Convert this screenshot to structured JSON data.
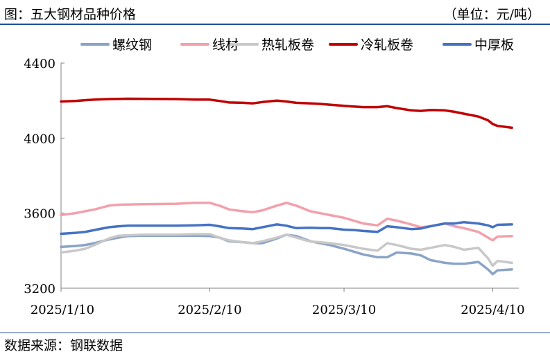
{
  "header": {
    "title": "图：五大钢材品种价格",
    "unit": "（单位：元/吨）"
  },
  "footer": {
    "source": "数据来源：钢联数据"
  },
  "chart_data": {
    "type": "line",
    "x_labels": [
      "2025/1/10",
      "2025/2/10",
      "2025/3/10",
      "2025/4/10"
    ],
    "x_range": [
      "2025/1/10",
      "2025/4/15"
    ],
    "ylim": [
      3200,
      4400
    ],
    "yticks": [
      3200,
      3600,
      4000,
      4400
    ],
    "legend_position": "top",
    "grid": false,
    "series": [
      {
        "name": "螺纹钢",
        "color": "#8aa3c8",
        "points": [
          [
            "2025-01-10",
            3420
          ],
          [
            "2025-01-13",
            3425
          ],
          [
            "2025-01-15",
            3430
          ],
          [
            "2025-01-17",
            3440
          ],
          [
            "2025-01-20",
            3460
          ],
          [
            "2025-01-22",
            3470
          ],
          [
            "2025-01-24",
            3478
          ],
          [
            "2025-01-27",
            3480
          ],
          [
            "2025-02-03",
            3480
          ],
          [
            "2025-02-07",
            3480
          ],
          [
            "2025-02-10",
            3478
          ],
          [
            "2025-02-12",
            3470
          ],
          [
            "2025-02-14",
            3450
          ],
          [
            "2025-02-17",
            3445
          ],
          [
            "2025-02-19",
            3440
          ],
          [
            "2025-02-21",
            3440
          ],
          [
            "2025-02-24",
            3465
          ],
          [
            "2025-02-26",
            3485
          ],
          [
            "2025-02-28",
            3478
          ],
          [
            "2025-03-03",
            3450
          ],
          [
            "2025-03-05",
            3440
          ],
          [
            "2025-03-07",
            3430
          ],
          [
            "2025-03-10",
            3410
          ],
          [
            "2025-03-12",
            3395
          ],
          [
            "2025-03-14",
            3380
          ],
          [
            "2025-03-17",
            3365
          ],
          [
            "2025-03-19",
            3365
          ],
          [
            "2025-03-21",
            3390
          ],
          [
            "2025-03-24",
            3385
          ],
          [
            "2025-03-26",
            3375
          ],
          [
            "2025-03-28",
            3350
          ],
          [
            "2025-03-31",
            3335
          ],
          [
            "2025-04-02",
            3330
          ],
          [
            "2025-04-04",
            3330
          ],
          [
            "2025-04-07",
            3340
          ],
          [
            "2025-04-09",
            3300
          ],
          [
            "2025-04-10",
            3275
          ],
          [
            "2025-04-11",
            3295
          ],
          [
            "2025-04-14",
            3300
          ]
        ]
      },
      {
        "name": "线材",
        "color": "#f2a0ac",
        "points": [
          [
            "2025-01-10",
            3590
          ],
          [
            "2025-01-13",
            3600
          ],
          [
            "2025-01-15",
            3610
          ],
          [
            "2025-01-17",
            3620
          ],
          [
            "2025-01-20",
            3640
          ],
          [
            "2025-01-22",
            3645
          ],
          [
            "2025-01-27",
            3648
          ],
          [
            "2025-02-03",
            3650
          ],
          [
            "2025-02-07",
            3655
          ],
          [
            "2025-02-10",
            3655
          ],
          [
            "2025-02-12",
            3640
          ],
          [
            "2025-02-14",
            3620
          ],
          [
            "2025-02-17",
            3610
          ],
          [
            "2025-02-19",
            3605
          ],
          [
            "2025-02-21",
            3615
          ],
          [
            "2025-02-24",
            3640
          ],
          [
            "2025-02-26",
            3655
          ],
          [
            "2025-02-28",
            3640
          ],
          [
            "2025-03-03",
            3610
          ],
          [
            "2025-03-05",
            3600
          ],
          [
            "2025-03-07",
            3590
          ],
          [
            "2025-03-10",
            3575
          ],
          [
            "2025-03-12",
            3560
          ],
          [
            "2025-03-14",
            3545
          ],
          [
            "2025-03-17",
            3535
          ],
          [
            "2025-03-19",
            3570
          ],
          [
            "2025-03-21",
            3560
          ],
          [
            "2025-03-24",
            3540
          ],
          [
            "2025-03-26",
            3525
          ],
          [
            "2025-03-28",
            3530
          ],
          [
            "2025-03-31",
            3545
          ],
          [
            "2025-04-02",
            3530
          ],
          [
            "2025-04-04",
            3520
          ],
          [
            "2025-04-07",
            3500
          ],
          [
            "2025-04-09",
            3470
          ],
          [
            "2025-04-10",
            3455
          ],
          [
            "2025-04-11",
            3475
          ],
          [
            "2025-04-14",
            3478
          ]
        ]
      },
      {
        "name": "热轧板卷",
        "color": "#c8c8c8",
        "points": [
          [
            "2025-01-10",
            3390
          ],
          [
            "2025-01-13",
            3400
          ],
          [
            "2025-01-15",
            3410
          ],
          [
            "2025-01-17",
            3430
          ],
          [
            "2025-01-20",
            3465
          ],
          [
            "2025-01-22",
            3480
          ],
          [
            "2025-01-27",
            3485
          ],
          [
            "2025-02-03",
            3485
          ],
          [
            "2025-02-07",
            3488
          ],
          [
            "2025-02-10",
            3488
          ],
          [
            "2025-02-12",
            3470
          ],
          [
            "2025-02-14",
            3455
          ],
          [
            "2025-02-17",
            3445
          ],
          [
            "2025-02-19",
            3440
          ],
          [
            "2025-02-21",
            3450
          ],
          [
            "2025-02-24",
            3470
          ],
          [
            "2025-02-26",
            3485
          ],
          [
            "2025-02-28",
            3470
          ],
          [
            "2025-03-03",
            3448
          ],
          [
            "2025-03-05",
            3445
          ],
          [
            "2025-03-07",
            3440
          ],
          [
            "2025-03-10",
            3430
          ],
          [
            "2025-03-12",
            3420
          ],
          [
            "2025-03-14",
            3410
          ],
          [
            "2025-03-17",
            3400
          ],
          [
            "2025-03-19",
            3440
          ],
          [
            "2025-03-21",
            3430
          ],
          [
            "2025-03-24",
            3410
          ],
          [
            "2025-03-26",
            3405
          ],
          [
            "2025-03-28",
            3415
          ],
          [
            "2025-03-31",
            3430
          ],
          [
            "2025-04-02",
            3420
          ],
          [
            "2025-04-04",
            3405
          ],
          [
            "2025-04-07",
            3415
          ],
          [
            "2025-04-09",
            3360
          ],
          [
            "2025-04-10",
            3320
          ],
          [
            "2025-04-11",
            3345
          ],
          [
            "2025-04-14",
            3335
          ]
        ]
      },
      {
        "name": "冷轧板卷",
        "color": "#c00000",
        "points": [
          [
            "2025-01-10",
            4195
          ],
          [
            "2025-01-13",
            4198
          ],
          [
            "2025-01-15",
            4202
          ],
          [
            "2025-01-17",
            4205
          ],
          [
            "2025-01-20",
            4208
          ],
          [
            "2025-01-24",
            4210
          ],
          [
            "2025-02-03",
            4208
          ],
          [
            "2025-02-07",
            4205
          ],
          [
            "2025-02-10",
            4205
          ],
          [
            "2025-02-12",
            4198
          ],
          [
            "2025-02-14",
            4190
          ],
          [
            "2025-02-17",
            4188
          ],
          [
            "2025-02-19",
            4185
          ],
          [
            "2025-02-21",
            4192
          ],
          [
            "2025-02-24",
            4200
          ],
          [
            "2025-02-26",
            4195
          ],
          [
            "2025-02-28",
            4188
          ],
          [
            "2025-03-03",
            4185
          ],
          [
            "2025-03-05",
            4182
          ],
          [
            "2025-03-07",
            4178
          ],
          [
            "2025-03-10",
            4172
          ],
          [
            "2025-03-12",
            4168
          ],
          [
            "2025-03-14",
            4165
          ],
          [
            "2025-03-17",
            4165
          ],
          [
            "2025-03-19",
            4170
          ],
          [
            "2025-03-21",
            4160
          ],
          [
            "2025-03-24",
            4148
          ],
          [
            "2025-03-26",
            4145
          ],
          [
            "2025-03-28",
            4150
          ],
          [
            "2025-03-31",
            4148
          ],
          [
            "2025-04-02",
            4140
          ],
          [
            "2025-04-04",
            4130
          ],
          [
            "2025-04-07",
            4115
          ],
          [
            "2025-04-09",
            4095
          ],
          [
            "2025-04-10",
            4075
          ],
          [
            "2025-04-11",
            4065
          ],
          [
            "2025-04-14",
            4055
          ]
        ]
      },
      {
        "name": "中厚板",
        "color": "#4472c4",
        "points": [
          [
            "2025-01-10",
            3490
          ],
          [
            "2025-01-13",
            3495
          ],
          [
            "2025-01-15",
            3500
          ],
          [
            "2025-01-17",
            3510
          ],
          [
            "2025-01-20",
            3525
          ],
          [
            "2025-01-22",
            3530
          ],
          [
            "2025-01-24",
            3533
          ],
          [
            "2025-01-27",
            3533
          ],
          [
            "2025-02-03",
            3533
          ],
          [
            "2025-02-07",
            3535
          ],
          [
            "2025-02-10",
            3538
          ],
          [
            "2025-02-12",
            3530
          ],
          [
            "2025-02-14",
            3520
          ],
          [
            "2025-02-17",
            3518
          ],
          [
            "2025-02-19",
            3515
          ],
          [
            "2025-02-21",
            3525
          ],
          [
            "2025-02-24",
            3540
          ],
          [
            "2025-02-26",
            3533
          ],
          [
            "2025-02-28",
            3520
          ],
          [
            "2025-03-03",
            3522
          ],
          [
            "2025-03-05",
            3520
          ],
          [
            "2025-03-07",
            3520
          ],
          [
            "2025-03-10",
            3512
          ],
          [
            "2025-03-12",
            3510
          ],
          [
            "2025-03-14",
            3505
          ],
          [
            "2025-03-17",
            3500
          ],
          [
            "2025-03-19",
            3530
          ],
          [
            "2025-03-21",
            3525
          ],
          [
            "2025-03-24",
            3515
          ],
          [
            "2025-03-26",
            3518
          ],
          [
            "2025-03-28",
            3530
          ],
          [
            "2025-03-31",
            3545
          ],
          [
            "2025-04-02",
            3545
          ],
          [
            "2025-04-04",
            3552
          ],
          [
            "2025-04-07",
            3545
          ],
          [
            "2025-04-09",
            3535
          ],
          [
            "2025-04-10",
            3525
          ],
          [
            "2025-04-11",
            3538
          ],
          [
            "2025-04-14",
            3540
          ]
        ]
      }
    ]
  }
}
